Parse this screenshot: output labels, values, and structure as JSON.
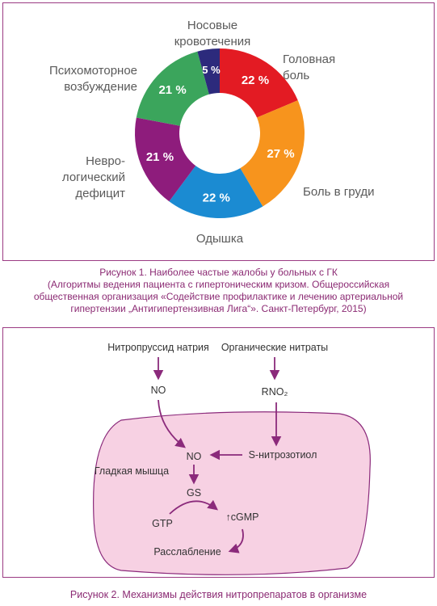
{
  "chart_data": {
    "type": "donut",
    "categories": [
      "Головная\nболь",
      "Боль в груди",
      "Одышка",
      "Невро-\nлогический\nдефицит",
      "Психомоторное\nвозбуждение",
      "Носовые\nкровотечения"
    ],
    "values": [
      22,
      27,
      22,
      21,
      21,
      5
    ],
    "value_labels": [
      "22 %",
      "27 %",
      "22 %",
      "21 %",
      "21 %",
      "5 %"
    ],
    "colors": [
      "#e31b23",
      "#f7941d",
      "#1b8bd2",
      "#8e1c7c",
      "#3ba55c",
      "#2c2a7c"
    ]
  },
  "figure1_caption": {
    "title": "Рисунок 1.  Наиболее частые жалобы у больных с ГК",
    "source": "(Алгоритмы ведения пациента с гипертоническим кризом. Общероссийская общественная организация «Содействие профилактике и лечению артериальной гипертензии „Антигипертензивная Лига“». Санкт-Петербург, 2015)"
  },
  "diagram": {
    "nodes": [
      "Нитропруссид натрия",
      "Органические нитраты",
      "NO",
      "RNO₂",
      "NO",
      "S-нитрозотиол",
      "Гладкая мышца",
      "GS",
      "GTP",
      "↑cGMP",
      "Расслабление"
    ]
  },
  "figure2_caption": "Рисунок 2.  Механизмы действия нитропрепаратов в организме"
}
